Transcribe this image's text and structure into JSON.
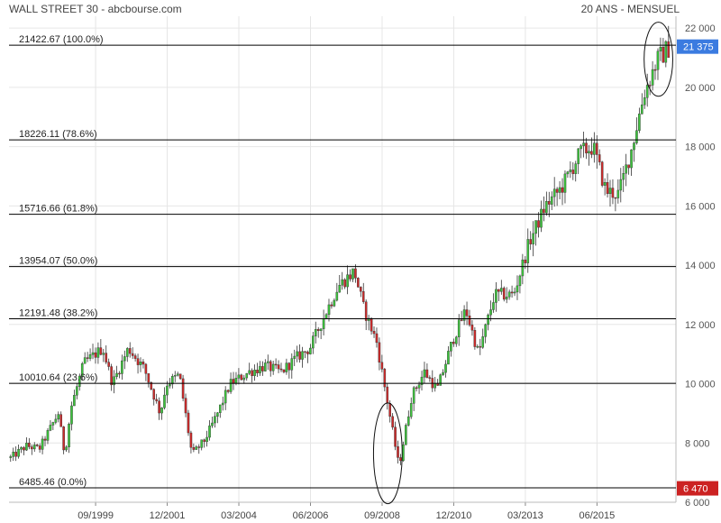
{
  "header": {
    "title": "WALL STREET 30 - abcbourse.com",
    "period": "20 ANS - MENSUEL"
  },
  "colors": {
    "up": "#3cc43c",
    "down": "#cc2a2a",
    "grid": "#e6e6e6",
    "line": "#000000",
    "current_price_bg": "#3b7be0",
    "low_price_bg": "#cc2222"
  },
  "chart_data": {
    "type": "candlestick",
    "title": "WALL STREET 30 - abcbourse.com",
    "subtitle": "20 ANS - MENSUEL",
    "x_tick_labels": [
      "09/1999",
      "12/2001",
      "03/2004",
      "06/2006",
      "09/2008",
      "12/2010",
      "03/2013",
      "06/2015"
    ],
    "x_ticks": [
      1999.67,
      2001.92,
      2004.17,
      2006.42,
      2008.67,
      2010.92,
      2013.17,
      2015.42
    ],
    "x_range": [
      1996.95,
      2017.9
    ],
    "y_range": [
      6000,
      22400
    ],
    "y_ticks": [
      6000,
      8000,
      10000,
      12000,
      14000,
      16000,
      18000,
      20000,
      22000
    ],
    "y_tick_labels": [
      "6 000",
      "8 000",
      "10 000",
      "12 000",
      "14 000",
      "16 000",
      "18 000",
      "20 000",
      "22 000"
    ],
    "fibonacci_levels": [
      {
        "value": 21422.67,
        "label": "21422.67  (100.0%)"
      },
      {
        "value": 18226.11,
        "label": "18226.11  (78.6%)"
      },
      {
        "value": 15716.66,
        "label": "15716.66  (61.8%)"
      },
      {
        "value": 13954.07,
        "label": "13954.07  (50.0%)"
      },
      {
        "value": 12191.48,
        "label": "12191.48  (38.2%)"
      },
      {
        "value": 10010.64,
        "label": "10010.64  (23.6%)"
      },
      {
        "value": 6485.46,
        "label": "6485.46  (0.0%)"
      }
    ],
    "current_price": {
      "value": 21375,
      "label": "21 375"
    },
    "low_price": {
      "value": 6470,
      "label": "6 470"
    },
    "annotations": [
      {
        "type": "ellipse",
        "center": [
          2017.35,
          20950
        ],
        "radius_years": 0.45,
        "radius_value": 1250
      },
      {
        "type": "ellipse",
        "center": [
          2008.85,
          7650
        ],
        "radius_years": 0.45,
        "radius_value": 1700
      }
    ],
    "anchors": [
      [
        1997.0,
        7500
      ],
      [
        1997.5,
        7900
      ],
      [
        1997.9,
        7800
      ],
      [
        1998.5,
        9000
      ],
      [
        1998.7,
        7600
      ],
      [
        1998.9,
        9200
      ],
      [
        1999.3,
        10700
      ],
      [
        1999.9,
        11200
      ],
      [
        2000.2,
        10000
      ],
      [
        2000.7,
        11200
      ],
      [
        2001.2,
        10500
      ],
      [
        2001.7,
        9000
      ],
      [
        2001.9,
        10000
      ],
      [
        2002.3,
        10300
      ],
      [
        2002.7,
        7600
      ],
      [
        2003.1,
        8100
      ],
      [
        2003.5,
        9000
      ],
      [
        2003.9,
        10000
      ],
      [
        2004.5,
        10400
      ],
      [
        2005.0,
        10600
      ],
      [
        2005.5,
        10400
      ],
      [
        2006.0,
        10900
      ],
      [
        2006.4,
        11200
      ],
      [
        2006.9,
        12400
      ],
      [
        2007.3,
        13300
      ],
      [
        2007.8,
        13800
      ],
      [
        2008.1,
        12500
      ],
      [
        2008.5,
        11400
      ],
      [
        2008.9,
        9000
      ],
      [
        2009.2,
        7200
      ],
      [
        2009.6,
        9600
      ],
      [
        2010.0,
        10400
      ],
      [
        2010.4,
        9800
      ],
      [
        2010.9,
        11500
      ],
      [
        2011.3,
        12500
      ],
      [
        2011.7,
        11000
      ],
      [
        2012.2,
        13000
      ],
      [
        2012.8,
        13000
      ],
      [
        2013.3,
        14800
      ],
      [
        2013.8,
        16000
      ],
      [
        2014.3,
        16600
      ],
      [
        2014.9,
        17800
      ],
      [
        2015.3,
        18000
      ],
      [
        2015.7,
        16500
      ],
      [
        2016.1,
        16400
      ],
      [
        2016.5,
        17900
      ],
      [
        2016.9,
        19800
      ],
      [
        2017.3,
        20900
      ],
      [
        2017.7,
        21375
      ]
    ]
  }
}
